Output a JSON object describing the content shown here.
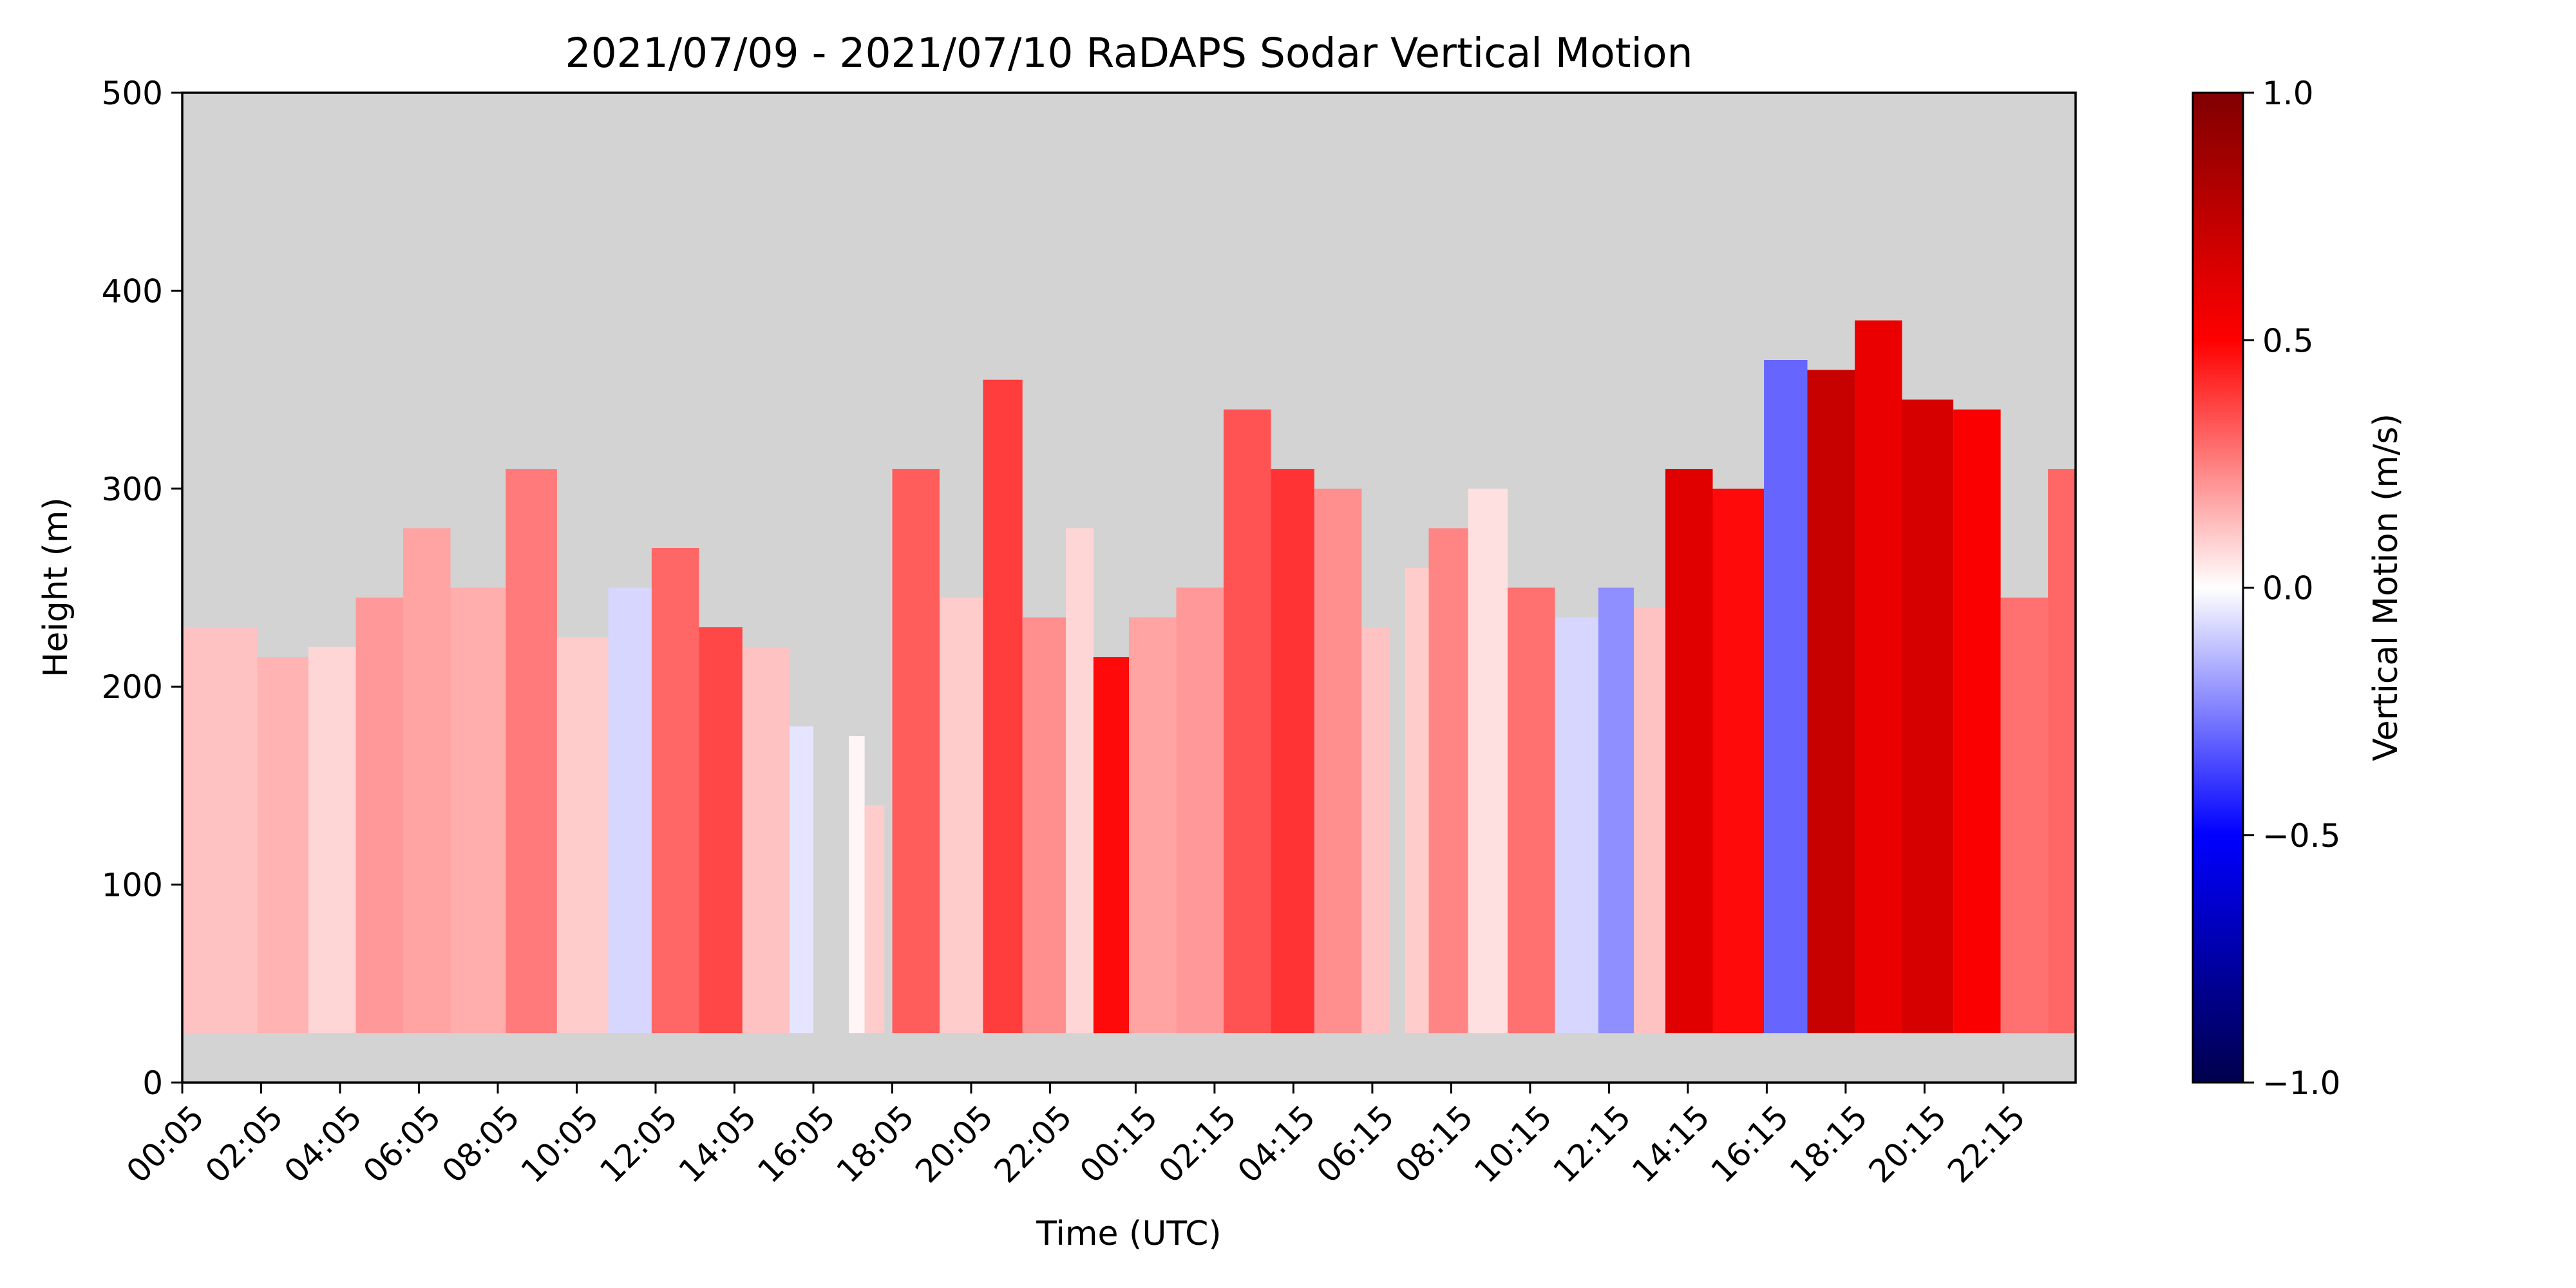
{
  "chart_data": {
    "type": "heatmap",
    "title": "2021/07/09 - 2021/07/10 RaDAPS Sodar Vertical Motion",
    "xlabel": "Time (UTC)",
    "ylabel": "Height (m)",
    "colorbar_label": "Vertical Motion (m/s)",
    "colormap": "seismic",
    "missing_color": "#d3d3d3",
    "xlim": [
      0,
      48
    ],
    "xticks": [
      {
        "x": 0,
        "label": "00:05"
      },
      {
        "x": 2,
        "label": "02:05"
      },
      {
        "x": 4,
        "label": "04:05"
      },
      {
        "x": 6,
        "label": "06:05"
      },
      {
        "x": 8,
        "label": "08:05"
      },
      {
        "x": 10,
        "label": "10:05"
      },
      {
        "x": 12,
        "label": "12:05"
      },
      {
        "x": 14,
        "label": "14:05"
      },
      {
        "x": 16,
        "label": "16:05"
      },
      {
        "x": 18,
        "label": "18:05"
      },
      {
        "x": 20,
        "label": "20:05"
      },
      {
        "x": 22,
        "label": "22:05"
      },
      {
        "x": 24.17,
        "label": "00:15"
      },
      {
        "x": 26.17,
        "label": "02:15"
      },
      {
        "x": 28.17,
        "label": "04:15"
      },
      {
        "x": 30.17,
        "label": "06:15"
      },
      {
        "x": 32.17,
        "label": "08:15"
      },
      {
        "x": 34.17,
        "label": "10:15"
      },
      {
        "x": 36.17,
        "label": "12:15"
      },
      {
        "x": 38.17,
        "label": "14:15"
      },
      {
        "x": 40.17,
        "label": "16:15"
      },
      {
        "x": 42.17,
        "label": "18:15"
      },
      {
        "x": 44.17,
        "label": "20:15"
      },
      {
        "x": 46.17,
        "label": "22:15"
      }
    ],
    "ylim": [
      0,
      500
    ],
    "yticks": [
      0,
      100,
      200,
      300,
      400,
      500
    ],
    "clim": [
      -1.0,
      1.0
    ],
    "cticks": [
      {
        "v": -1.0,
        "label": "−1.0"
      },
      {
        "v": -0.5,
        "label": "−0.5"
      },
      {
        "v": 0.0,
        "label": "0.0"
      },
      {
        "v": 0.5,
        "label": "0.5"
      },
      {
        "v": 1.0,
        "label": "1.0"
      }
    ],
    "min_height": 25,
    "columns": [
      [
        0.0,
        1.9,
        230,
        0.12
      ],
      [
        1.9,
        3.2,
        215,
        0.15
      ],
      [
        3.2,
        4.4,
        220,
        0.08
      ],
      [
        4.4,
        5.6,
        245,
        0.2
      ],
      [
        5.6,
        6.8,
        280,
        0.18
      ],
      [
        6.8,
        8.2,
        250,
        0.16
      ],
      [
        8.2,
        9.5,
        310,
        0.26
      ],
      [
        9.5,
        10.8,
        225,
        0.1
      ],
      [
        10.8,
        11.9,
        250,
        -0.08
      ],
      [
        11.9,
        13.1,
        270,
        0.3
      ],
      [
        13.1,
        14.2,
        230,
        0.36
      ],
      [
        14.2,
        15.4,
        220,
        0.12
      ],
      [
        15.4,
        16.0,
        180,
        -0.05
      ],
      [
        16.9,
        17.3,
        175,
        0.02
      ],
      [
        17.3,
        17.8,
        140,
        0.1
      ],
      [
        18.0,
        19.2,
        310,
        0.32
      ],
      [
        19.2,
        20.3,
        245,
        0.1
      ],
      [
        20.3,
        21.3,
        355,
        0.38
      ],
      [
        21.3,
        22.4,
        235,
        0.22
      ],
      [
        22.4,
        23.1,
        280,
        0.08
      ],
      [
        23.1,
        24.0,
        215,
        0.48
      ],
      [
        24.0,
        25.2,
        235,
        0.18
      ],
      [
        25.2,
        26.4,
        250,
        0.2
      ],
      [
        26.4,
        27.6,
        340,
        0.34
      ],
      [
        27.6,
        28.7,
        310,
        0.4
      ],
      [
        28.7,
        29.9,
        300,
        0.22
      ],
      [
        29.9,
        30.6,
        230,
        0.12
      ],
      [
        31.0,
        31.6,
        260,
        0.1
      ],
      [
        31.6,
        32.6,
        280,
        0.24
      ],
      [
        32.6,
        33.6,
        300,
        0.06
      ],
      [
        33.6,
        34.8,
        250,
        0.28
      ],
      [
        34.8,
        35.9,
        235,
        -0.08
      ],
      [
        35.9,
        36.8,
        250,
        -0.22
      ],
      [
        36.8,
        37.6,
        240,
        0.12
      ],
      [
        37.6,
        38.8,
        310,
        0.62
      ],
      [
        38.8,
        40.1,
        300,
        0.48
      ],
      [
        40.1,
        41.2,
        365,
        -0.3
      ],
      [
        41.2,
        42.4,
        360,
        0.72
      ],
      [
        42.4,
        43.6,
        385,
        0.58
      ],
      [
        43.6,
        44.9,
        345,
        0.66
      ],
      [
        44.9,
        46.1,
        340,
        0.52
      ],
      [
        46.1,
        47.3,
        245,
        0.28
      ],
      [
        47.3,
        48.0,
        310,
        0.3
      ]
    ]
  }
}
